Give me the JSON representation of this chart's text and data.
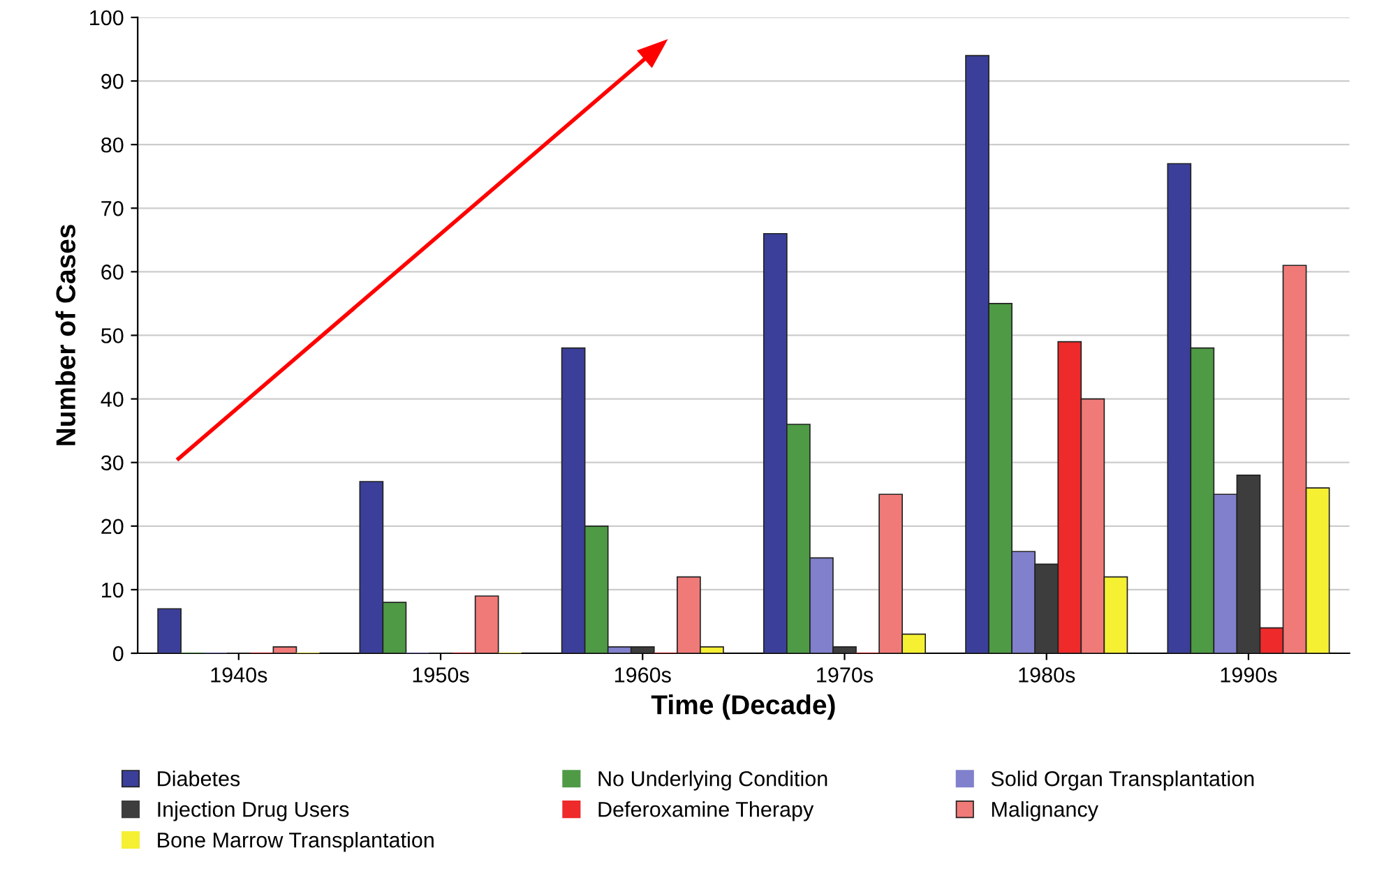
{
  "chart_data": {
    "type": "bar",
    "xlabel": "Time (Decade)",
    "ylabel": "Number of Cases",
    "categories": [
      "1940s",
      "1950s",
      "1960s",
      "1970s",
      "1980s",
      "1990s"
    ],
    "series": [
      {
        "name": "Diabetes",
        "color": "#3b3f9a",
        "values": [
          7,
          27,
          48,
          66,
          94,
          77
        ]
      },
      {
        "name": "No Underlying Condition",
        "color": "#4e9a45",
        "values": [
          0,
          8,
          20,
          36,
          55,
          48
        ]
      },
      {
        "name": "Solid Organ Transplantation",
        "color": "#8080cc",
        "values": [
          0,
          0,
          1,
          15,
          16,
          25
        ]
      },
      {
        "name": "Injection Drug Users",
        "color": "#3d3d3d",
        "values": [
          0,
          0,
          1,
          1,
          14,
          28
        ]
      },
      {
        "name": "Deferoxamine Therapy",
        "color": "#ee2a2a",
        "values": [
          0,
          0,
          0,
          0,
          49,
          4
        ]
      },
      {
        "name": "Malignancy",
        "color": "#f07a78",
        "values": [
          1,
          9,
          12,
          25,
          40,
          61
        ]
      },
      {
        "name": "Bone Marrow Transplantation",
        "color": "#f5f032",
        "values": [
          0,
          0,
          1,
          3,
          12,
          26
        ]
      }
    ],
    "ylim": [
      0,
      100
    ],
    "yticks": [
      0,
      10,
      20,
      30,
      40,
      50,
      60,
      70,
      80,
      90,
      100
    ],
    "grid": "y",
    "legend": "bottom"
  }
}
